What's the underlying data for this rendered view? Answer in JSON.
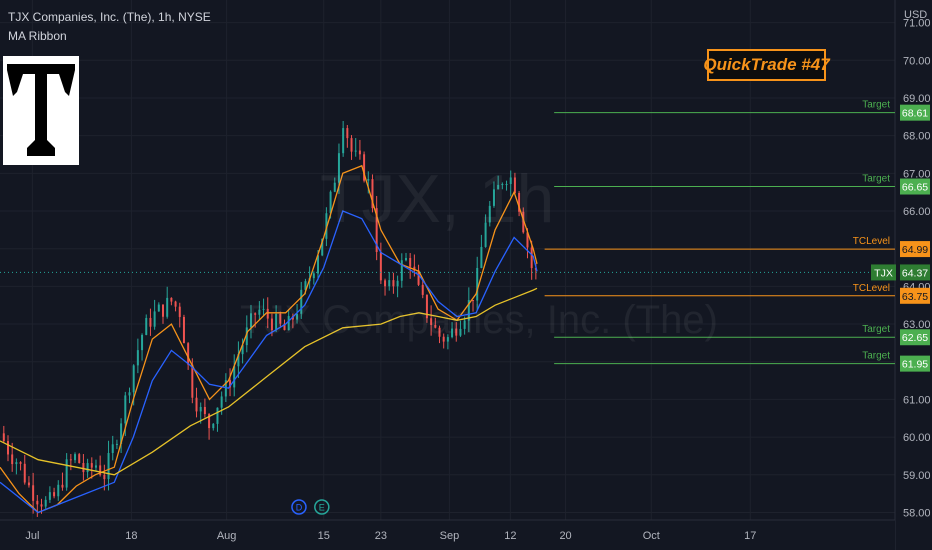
{
  "header": {
    "title": "TJX Companies, Inc. (The), 1h, NYSE",
    "indicator": "MA Ribbon"
  },
  "watermark": {
    "symbol": "TJX, 1h",
    "name": "TJX Companies, Inc. (The)"
  },
  "badge": {
    "text": "QuickTrade #47"
  },
  "currency": "USD",
  "colors": {
    "background": "#131722",
    "up_candle": "#26a69a",
    "down_candle": "#ef5350",
    "ma_fast": "#f7931a",
    "ma_mid": "#2962ff",
    "ma_slow": "#e6c229",
    "target": "#4caf50",
    "tc_level": "#f7931a",
    "last_price": "#2e7d32"
  },
  "event_markers": [
    {
      "label": "D",
      "x": 15.7,
      "color": "#2962ff"
    },
    {
      "label": "E",
      "x": 16.9,
      "color": "#26a69a"
    }
  ],
  "chart_data": {
    "type": "candlestick",
    "symbol": "TJX",
    "interval": "1h",
    "y_axis": {
      "range": [
        57.8,
        71.6
      ],
      "ticks": [
        "58.00",
        "59.00",
        "60.00",
        "61.00",
        "62.00",
        "63.00",
        "64.00",
        "65.00",
        "66.00",
        "67.00",
        "68.00",
        "69.00",
        "70.00",
        "71.00"
      ]
    },
    "x_axis": {
      "range": [
        0,
        47
      ],
      "ticks": [
        {
          "label": "Jul",
          "x": 1.7
        },
        {
          "label": "18",
          "x": 6.9
        },
        {
          "label": "Aug",
          "x": 11.9
        },
        {
          "label": "15",
          "x": 17.0
        },
        {
          "label": "23",
          "x": 20.0
        },
        {
          "label": "Sep",
          "x": 23.6
        },
        {
          "label": "12",
          "x": 26.8
        },
        {
          "label": "20",
          "x": 29.7
        },
        {
          "label": "Oct",
          "x": 34.2
        },
        {
          "label": "17",
          "x": 39.4
        }
      ]
    },
    "price_path": [
      [
        0,
        60.1
      ],
      [
        0.5,
        59.6
      ],
      [
        1,
        59.3
      ],
      [
        1.5,
        58.7
      ],
      [
        2,
        58.4
      ],
      [
        2.5,
        58.2
      ],
      [
        3,
        58.5
      ],
      [
        3.5,
        59.2
      ],
      [
        4,
        59.5
      ],
      [
        4.5,
        59.0
      ],
      [
        5,
        59.3
      ],
      [
        5.5,
        59.0
      ],
      [
        6,
        59.8
      ],
      [
        6.5,
        60.8
      ],
      [
        7,
        61.9
      ],
      [
        7.5,
        62.8
      ],
      [
        8,
        63.2
      ],
      [
        8.5,
        63.4
      ],
      [
        9,
        63.6
      ],
      [
        9.5,
        63.3
      ],
      [
        10,
        61.4
      ],
      [
        10.5,
        60.7
      ],
      [
        11,
        60.3
      ],
      [
        11.5,
        61.0
      ],
      [
        12,
        61.4
      ],
      [
        12.5,
        62.2
      ],
      [
        13,
        62.8
      ],
      [
        13.5,
        63.4
      ],
      [
        14,
        63.2
      ],
      [
        14.5,
        63.0
      ],
      [
        15,
        62.8
      ],
      [
        15.5,
        63.3
      ],
      [
        16,
        63.9
      ],
      [
        16.5,
        64.6
      ],
      [
        17,
        65.5
      ],
      [
        17.5,
        66.6
      ],
      [
        18,
        68.5
      ],
      [
        18.5,
        67.5
      ],
      [
        19,
        67.2
      ],
      [
        19.5,
        66.5
      ],
      [
        20,
        64.0
      ],
      [
        20.5,
        63.9
      ],
      [
        21,
        64.5
      ],
      [
        21.5,
        64.8
      ],
      [
        22,
        63.8
      ],
      [
        22.5,
        63.2
      ],
      [
        23,
        62.7
      ],
      [
        23.5,
        62.6
      ],
      [
        24,
        63.0
      ],
      [
        24.5,
        63.4
      ],
      [
        25,
        64.0
      ],
      [
        25.5,
        65.8
      ],
      [
        26,
        66.4
      ],
      [
        26.5,
        67.0
      ],
      [
        27,
        66.8
      ],
      [
        27.5,
        65.6
      ],
      [
        28,
        64.3
      ],
      [
        28.2,
        64.37
      ]
    ],
    "series": [
      {
        "name": "MA Ribbon fast",
        "points": [
          [
            0,
            59.2
          ],
          [
            1,
            58.5
          ],
          [
            2,
            58.0
          ],
          [
            3,
            58.2
          ],
          [
            4,
            58.7
          ],
          [
            5,
            59.0
          ],
          [
            6,
            59.2
          ],
          [
            7,
            61.0
          ],
          [
            8,
            62.6
          ],
          [
            9,
            63.0
          ],
          [
            10,
            62.0
          ],
          [
            11,
            61.0
          ],
          [
            12,
            61.5
          ],
          [
            13,
            62.8
          ],
          [
            14,
            63.3
          ],
          [
            15,
            63.3
          ],
          [
            16,
            63.8
          ],
          [
            17,
            65.3
          ],
          [
            18,
            67.0
          ],
          [
            19,
            67.2
          ],
          [
            20,
            65.5
          ],
          [
            21,
            64.6
          ],
          [
            22,
            64.4
          ],
          [
            23,
            63.4
          ],
          [
            24,
            63.1
          ],
          [
            25,
            63.8
          ],
          [
            26,
            65.5
          ],
          [
            27,
            66.5
          ],
          [
            28,
            65.0
          ],
          [
            28.2,
            64.6
          ]
        ]
      },
      {
        "name": "MA Ribbon mid",
        "points": [
          [
            0,
            58.8
          ],
          [
            2,
            58.0
          ],
          [
            4,
            58.4
          ],
          [
            6,
            58.8
          ],
          [
            7,
            60.0
          ],
          [
            8,
            61.5
          ],
          [
            9,
            62.3
          ],
          [
            10,
            61.9
          ],
          [
            11,
            61.4
          ],
          [
            12,
            61.3
          ],
          [
            13,
            62.0
          ],
          [
            14,
            62.7
          ],
          [
            15,
            63.0
          ],
          [
            16,
            63.5
          ],
          [
            17,
            64.5
          ],
          [
            18,
            66.0
          ],
          [
            19,
            65.8
          ],
          [
            20,
            64.9
          ],
          [
            21,
            64.6
          ],
          [
            22,
            64.3
          ],
          [
            23,
            63.6
          ],
          [
            24,
            63.2
          ],
          [
            25,
            63.3
          ],
          [
            26,
            64.4
          ],
          [
            27,
            65.3
          ],
          [
            28,
            64.8
          ],
          [
            28.2,
            64.4
          ]
        ]
      },
      {
        "name": "MA Ribbon slow",
        "points": [
          [
            0,
            59.9
          ],
          [
            2,
            59.4
          ],
          [
            4,
            59.2
          ],
          [
            6,
            59.0
          ],
          [
            8,
            59.6
          ],
          [
            10,
            60.3
          ],
          [
            12,
            60.8
          ],
          [
            14,
            61.6
          ],
          [
            16,
            62.4
          ],
          [
            18,
            62.9
          ],
          [
            20,
            63.0
          ],
          [
            21,
            63.2
          ],
          [
            22,
            63.3
          ],
          [
            23,
            63.2
          ],
          [
            24,
            63.1
          ],
          [
            25,
            63.2
          ],
          [
            26,
            63.5
          ],
          [
            27,
            63.7
          ],
          [
            28,
            63.9
          ],
          [
            28.2,
            63.95
          ]
        ]
      }
    ],
    "levels": [
      {
        "label": "Target",
        "value": "68.61",
        "price": 68.61,
        "type": "target"
      },
      {
        "label": "Target",
        "value": "66.65",
        "price": 66.65,
        "type": "target"
      },
      {
        "label": "TCLevel",
        "value": "64.99",
        "price": 64.99,
        "type": "tc"
      },
      {
        "label": "TCLevel",
        "value": "63.75",
        "price": 63.75,
        "type": "tc"
      },
      {
        "label": "Target",
        "value": "62.65",
        "price": 62.65,
        "type": "target"
      },
      {
        "label": "Target",
        "value": "61.95",
        "price": 61.95,
        "type": "target"
      }
    ],
    "last_price": {
      "symbol": "TJX",
      "value": "64.37",
      "price": 64.37
    }
  }
}
